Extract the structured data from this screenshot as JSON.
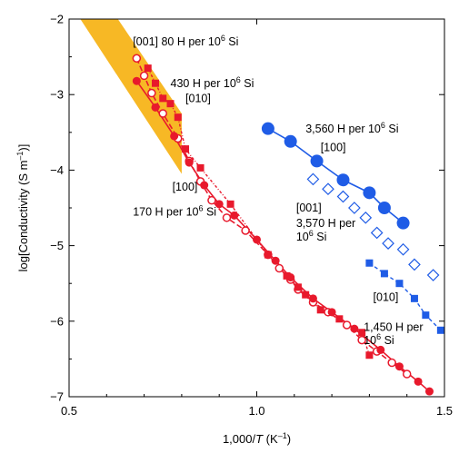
{
  "chart_data": {
    "type": "scatter",
    "xlabel_pre": "1,000/",
    "xlabel_var": "T",
    "xlabel_post": " (K",
    "xlabel_sup": "–1",
    "xlabel_end": ")",
    "ylabel_pre": "log[Conductivity (S m",
    "ylabel_sup": "–1",
    "ylabel_end": ")]",
    "xlim": [
      0.5,
      1.5
    ],
    "ylim": [
      -7,
      -2
    ],
    "xticks": [
      0.5,
      1.0,
      1.5
    ],
    "xtick_labels": [
      "0.5",
      "1.0",
      "1.5"
    ],
    "yticks": [
      -7,
      -6,
      -5,
      -4,
      -3,
      -2
    ],
    "ytick_labels": [
      "−7",
      "−6",
      "−5",
      "−4",
      "−3",
      "−2"
    ],
    "colors": {
      "red": "#e8192c",
      "blue": "#1f5ce6",
      "band": "#f7b825"
    },
    "band": [
      [
        0.53,
        -2.0
      ],
      [
        0.63,
        -2.0
      ],
      [
        0.8,
        -3.25
      ],
      [
        0.8,
        -4.05
      ]
    ],
    "annotations": [
      {
        "id": "ann-001-80",
        "parts": [
          [
            "[001] 80 H per 10",
            ""
          ],
          [
            "6",
            "sup"
          ],
          [
            " Si",
            ""
          ]
        ],
        "x": 0.67,
        "y": -2.35
      },
      {
        "id": "ann-430",
        "parts": [
          [
            "430 H per 10",
            ""
          ],
          [
            "6",
            "sup"
          ],
          [
            " Si",
            ""
          ]
        ],
        "x": 0.77,
        "y": -2.9
      },
      {
        "id": "ann-010-red",
        "parts": [
          [
            "[010]",
            ""
          ]
        ],
        "x": 0.81,
        "y": -3.1
      },
      {
        "id": "ann-100-red",
        "parts": [
          [
            "[100]",
            ""
          ]
        ],
        "x": 0.775,
        "y": -4.27
      },
      {
        "id": "ann-170",
        "parts": [
          [
            "170 H per 10",
            ""
          ],
          [
            "6",
            "sup"
          ],
          [
            " Si",
            ""
          ]
        ],
        "x": 0.67,
        "y": -4.6
      },
      {
        "id": "ann-3560",
        "parts": [
          [
            "3,560 H per 10",
            ""
          ],
          [
            "6",
            "sup"
          ],
          [
            " Si",
            ""
          ]
        ],
        "x": 1.13,
        "y": -3.5
      },
      {
        "id": "ann-100-blue",
        "parts": [
          [
            "[100]",
            ""
          ]
        ],
        "x": 1.17,
        "y": -3.75
      },
      {
        "id": "ann-001-blue",
        "parts": [
          [
            "[001]",
            ""
          ]
        ],
        "x": 1.105,
        "y": -4.55
      },
      {
        "id": "ann-3570-a",
        "parts": [
          [
            "3,570 H per",
            ""
          ]
        ],
        "x": 1.105,
        "y": -4.75
      },
      {
        "id": "ann-3570-b",
        "parts": [
          [
            "10",
            ""
          ],
          [
            "6",
            "sup"
          ],
          [
            " Si",
            ""
          ]
        ],
        "x": 1.105,
        "y": -4.93
      },
      {
        "id": "ann-010-blue",
        "parts": [
          [
            "[010]",
            ""
          ]
        ],
        "x": 1.31,
        "y": -5.73
      },
      {
        "id": "ann-1450-a",
        "parts": [
          [
            "1,450 H per",
            ""
          ]
        ],
        "x": 1.285,
        "y": -6.13
      },
      {
        "id": "ann-1450-b",
        "parts": [
          [
            "10",
            ""
          ],
          [
            "6",
            "sup"
          ],
          [
            " Si",
            ""
          ]
        ],
        "x": 1.285,
        "y": -6.3
      }
    ],
    "series": [
      {
        "id": "red-001",
        "color": "red",
        "marker": "circle-open",
        "size": 5,
        "dash": "6,3",
        "width": 1.6,
        "points": [
          [
            0.68,
            -2.52
          ],
          [
            0.7,
            -2.75
          ],
          [
            0.72,
            -2.98
          ],
          [
            0.75,
            -3.25
          ],
          [
            0.79,
            -3.58
          ],
          [
            0.82,
            -3.88
          ],
          [
            0.85,
            -4.15
          ],
          [
            0.88,
            -4.4
          ],
          [
            0.92,
            -4.63
          ],
          [
            0.97,
            -4.8
          ],
          [
            1.03,
            -5.12
          ],
          [
            1.06,
            -5.3
          ],
          [
            1.09,
            -5.45
          ],
          [
            1.11,
            -5.58
          ],
          [
            1.15,
            -5.75
          ],
          [
            1.19,
            -5.88
          ],
          [
            1.24,
            -6.05
          ],
          [
            1.28,
            -6.25
          ],
          [
            1.32,
            -6.4
          ],
          [
            1.36,
            -6.55
          ],
          [
            1.4,
            -6.7
          ]
        ]
      },
      {
        "id": "red-100",
        "color": "red",
        "marker": "circle-filled",
        "size": 4.5,
        "dash": "",
        "width": 1.6,
        "points": [
          [
            0.68,
            -2.82
          ],
          [
            0.73,
            -3.17
          ],
          [
            0.78,
            -3.55
          ],
          [
            0.82,
            -3.9
          ],
          [
            0.86,
            -4.2
          ],
          [
            0.9,
            -4.45
          ],
          [
            0.94,
            -4.6
          ],
          [
            1.0,
            -4.92
          ],
          [
            1.05,
            -5.2
          ],
          [
            1.09,
            -5.42
          ],
          [
            1.15,
            -5.7
          ],
          [
            1.2,
            -5.88
          ],
          [
            1.26,
            -6.1
          ],
          [
            1.33,
            -6.38
          ],
          [
            1.38,
            -6.6
          ],
          [
            1.43,
            -6.8
          ],
          [
            1.46,
            -6.93
          ]
        ]
      },
      {
        "id": "red-010",
        "color": "red",
        "marker": "square",
        "size": 8,
        "dash": "3,2,1,2",
        "width": 1.4,
        "points": [
          [
            0.71,
            -2.65
          ],
          [
            0.73,
            -2.85
          ],
          [
            0.75,
            -3.05
          ],
          [
            0.77,
            -3.12
          ],
          [
            0.79,
            -3.3
          ],
          [
            0.81,
            -3.72
          ],
          [
            0.85,
            -3.97
          ],
          [
            0.93,
            -4.45
          ],
          [
            1.03,
            -5.12
          ],
          [
            1.08,
            -5.4
          ],
          [
            1.11,
            -5.55
          ],
          [
            1.13,
            -5.65
          ],
          [
            1.17,
            -5.85
          ],
          [
            1.22,
            -5.97
          ],
          [
            1.28,
            -6.15
          ],
          [
            1.3,
            -6.45
          ]
        ]
      },
      {
        "id": "blue-100",
        "color": "blue",
        "marker": "circle-filled",
        "size": 7,
        "dash": "",
        "width": 1.6,
        "points": [
          [
            1.03,
            -3.45
          ],
          [
            1.09,
            -3.62
          ],
          [
            1.16,
            -3.88
          ],
          [
            1.23,
            -4.13
          ],
          [
            1.3,
            -4.3
          ],
          [
            1.34,
            -4.5
          ],
          [
            1.39,
            -4.7
          ]
        ]
      },
      {
        "id": "blue-001",
        "color": "blue",
        "marker": "diamond-open",
        "size": 6,
        "dash": "",
        "width": 0,
        "points": [
          [
            1.15,
            -4.12
          ],
          [
            1.19,
            -4.25
          ],
          [
            1.23,
            -4.35
          ],
          [
            1.26,
            -4.5
          ],
          [
            1.29,
            -4.63
          ],
          [
            1.32,
            -4.83
          ],
          [
            1.35,
            -4.97
          ],
          [
            1.39,
            -5.05
          ],
          [
            1.42,
            -5.25
          ],
          [
            1.47,
            -5.39
          ]
        ]
      },
      {
        "id": "blue-010",
        "color": "blue",
        "marker": "square",
        "size": 8,
        "dash": "4,3",
        "width": 1.4,
        "points": [
          [
            1.3,
            -5.23
          ],
          [
            1.34,
            -5.37
          ],
          [
            1.38,
            -5.5
          ],
          [
            1.42,
            -5.7
          ],
          [
            1.45,
            -5.92
          ],
          [
            1.49,
            -6.12
          ]
        ]
      }
    ]
  }
}
